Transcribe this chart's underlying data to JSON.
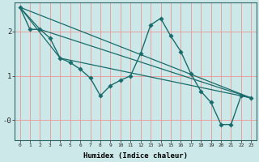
{
  "xlabel": "Humidex (Indice chaleur)",
  "ylabel": "",
  "background_color": "#cce8e8",
  "grid_color": "#e8a0a0",
  "line_color": "#1a6b6b",
  "xlim": [
    -0.5,
    23.5
  ],
  "ylim": [
    -0.45,
    2.65
  ],
  "xticks": [
    0,
    1,
    2,
    3,
    4,
    5,
    6,
    7,
    8,
    9,
    10,
    11,
    12,
    13,
    14,
    15,
    16,
    17,
    18,
    19,
    20,
    21,
    22,
    23
  ],
  "ytick_positions": [
    0,
    1,
    2
  ],
  "ytick_labels": [
    "-0",
    "1",
    "2"
  ],
  "line_main": {
    "x": [
      0,
      1,
      2,
      3,
      4,
      5,
      6,
      7,
      8,
      9,
      10,
      11,
      12,
      13,
      14,
      15,
      16,
      17,
      18,
      19,
      20,
      21,
      22,
      23
    ],
    "y": [
      2.55,
      2.05,
      2.05,
      1.85,
      1.4,
      1.3,
      1.15,
      0.95,
      0.55,
      0.78,
      0.9,
      1.0,
      1.5,
      2.15,
      2.3,
      1.9,
      1.55,
      1.05,
      0.65,
      0.4,
      -0.1,
      -0.1,
      0.55,
      0.5
    ]
  },
  "line_trends": [
    {
      "x": [
        0,
        23
      ],
      "y": [
        2.55,
        0.5
      ]
    },
    {
      "x": [
        0,
        2,
        23
      ],
      "y": [
        2.55,
        2.05,
        0.5
      ]
    },
    {
      "x": [
        0,
        4,
        23
      ],
      "y": [
        2.55,
        1.4,
        0.5
      ]
    }
  ]
}
